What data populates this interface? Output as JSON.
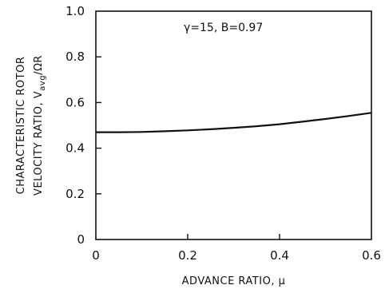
{
  "chart_data": {
    "type": "line",
    "title": "",
    "annotation": "γ=15, B=0.97",
    "xlabel": "ADVANCE RATIO, μ",
    "ylabel_line1": "CHARACTERISTIC ROTOR",
    "ylabel_line2": "VELOCITY RATIO, V",
    "ylabel_sub": "avg",
    "ylabel_tail": "/ΩR",
    "xlim": [
      0,
      0.6
    ],
    "ylim": [
      0,
      1.0
    ],
    "x_ticks": [
      "0",
      "0.2",
      "0.4",
      "0.6"
    ],
    "y_ticks": [
      "0",
      "0.2",
      "0.4",
      "0.6",
      "0.8",
      "1.0"
    ],
    "grid": false,
    "series": [
      {
        "x": [
          0,
          0.05,
          0.1,
          0.15,
          0.2,
          0.25,
          0.3,
          0.35,
          0.4,
          0.45,
          0.5,
          0.55,
          0.6
        ],
        "y": [
          0.47,
          0.47,
          0.471,
          0.474,
          0.478,
          0.483,
          0.489,
          0.496,
          0.505,
          0.516,
          0.528,
          0.541,
          0.555
        ]
      }
    ],
    "colors": {
      "line": "#111111",
      "axis": "#111111"
    }
  }
}
